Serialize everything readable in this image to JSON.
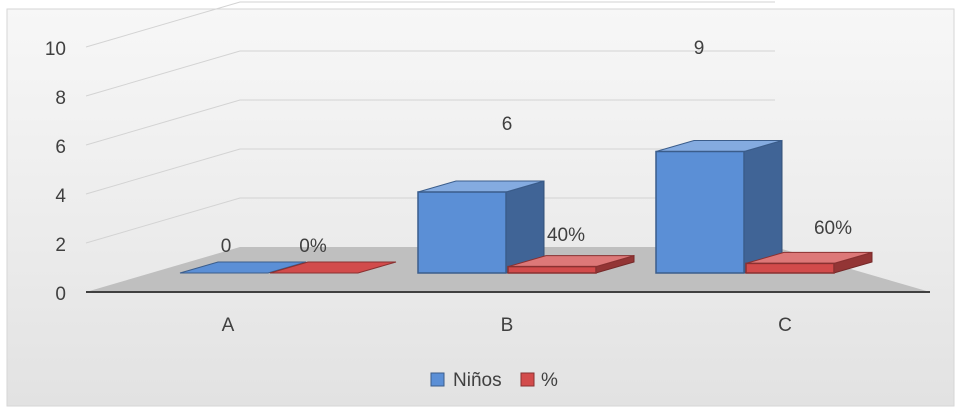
{
  "chart_data": {
    "type": "bar",
    "categories": [
      "A",
      "B",
      "C"
    ],
    "series": [
      {
        "name": "Niños",
        "values": [
          0,
          6,
          9
        ],
        "labels": [
          "0",
          "6",
          "9"
        ],
        "color": "#5b8fd6"
      },
      {
        "name": "%",
        "values": [
          0,
          0.4,
          0.6
        ],
        "labels": [
          "0%",
          "40%",
          "60%"
        ],
        "color": "#d24b4b"
      }
    ],
    "y_ticks": [
      "0",
      "2",
      "4",
      "6",
      "8",
      "10"
    ],
    "ylim": [
      0,
      10
    ],
    "grid": true,
    "legend_position": "bottom",
    "style": "3d-column"
  }
}
